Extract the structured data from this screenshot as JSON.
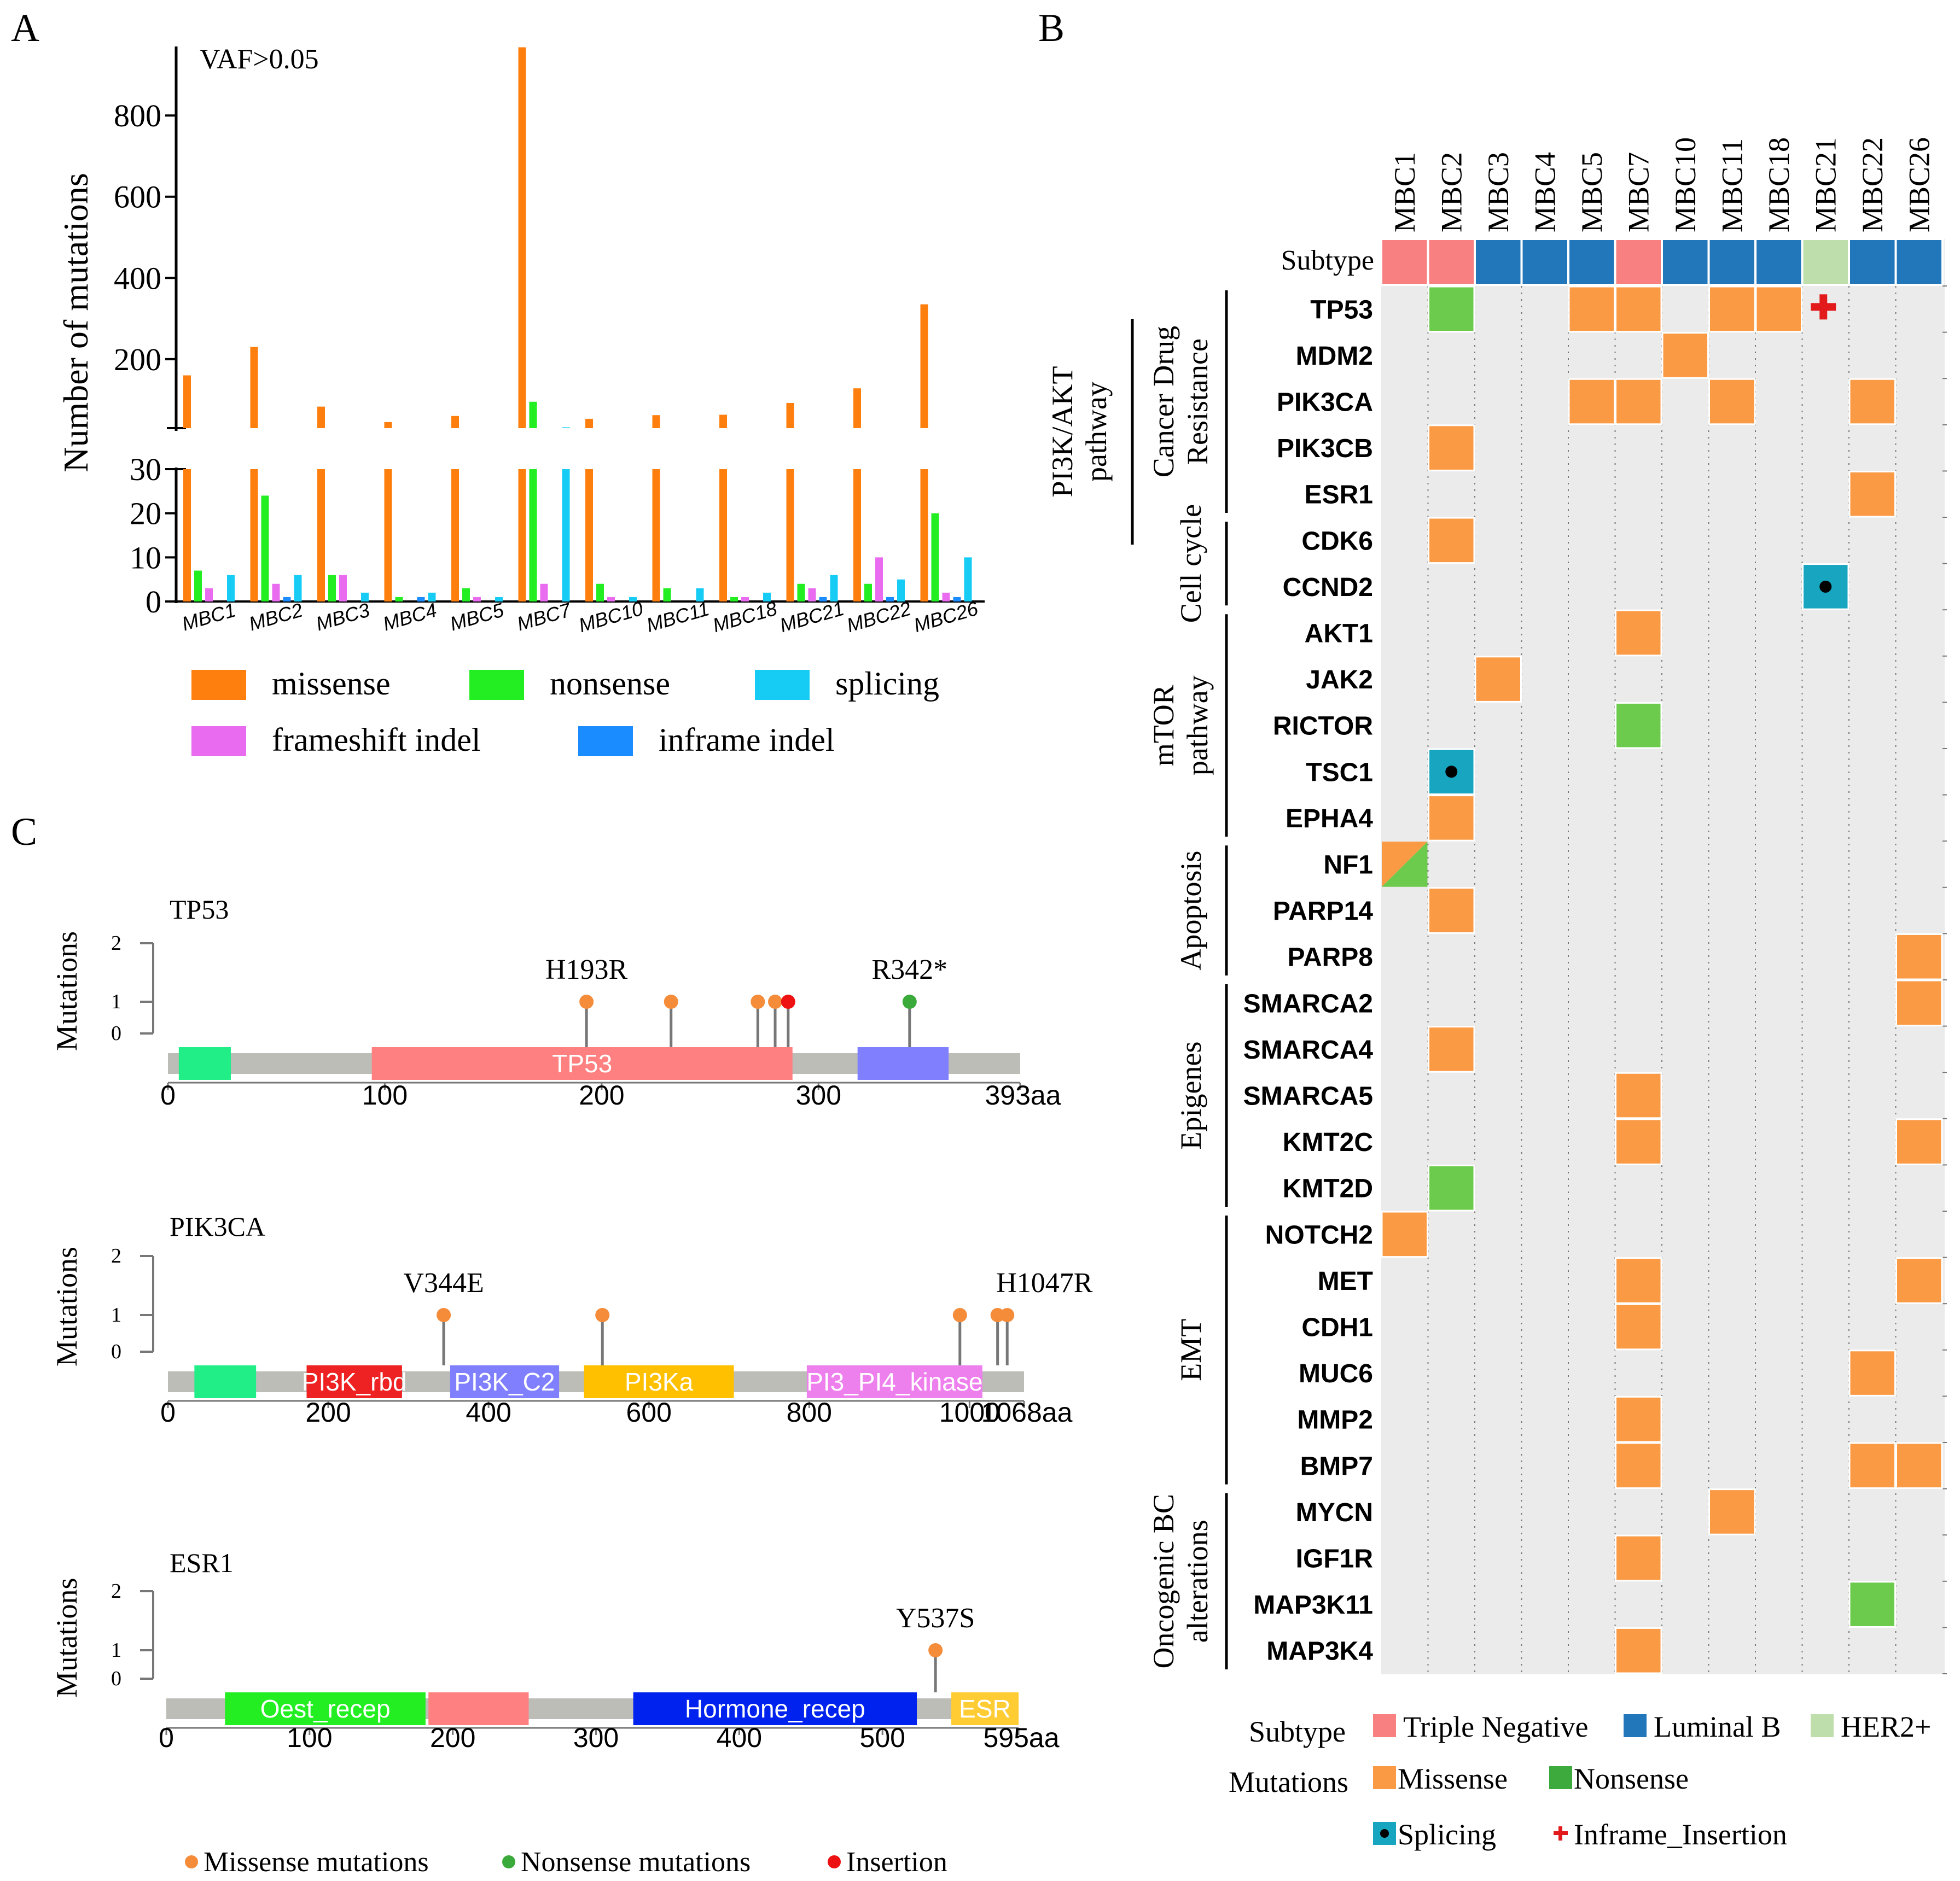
{
  "panel_labels": {
    "a": "A",
    "b": "B",
    "c": "C"
  },
  "chart_data": [
    {
      "id": "A",
      "type": "bar",
      "title": "VAF>0.05",
      "ylabel": "Number of mutations",
      "upper_ticks": [
        "200",
        "400",
        "600",
        "800"
      ],
      "lower_ticks": [
        "0",
        "10",
        "20",
        "30"
      ],
      "ylim_upper": [
        30,
        970
      ],
      "ylim_lower": [
        0,
        30
      ],
      "categories": [
        "MBC1",
        "MBC2",
        "MBC3",
        "MBC4",
        "MBC5",
        "MBC7",
        "MBC10",
        "MBC11",
        "MBC18",
        "MBC21",
        "MBC22",
        "MBC26"
      ],
      "series": [
        {
          "name": "missense",
          "color": "#FF7F0E",
          "values": [
            160,
            230,
            83,
            45,
            60,
            968,
            53,
            62,
            63,
            92,
            128,
            335
          ]
        },
        {
          "name": "nonsense",
          "color": "#22EE22",
          "values": [
            7,
            24,
            6,
            1,
            3,
            95,
            4,
            3,
            1,
            4,
            4,
            20
          ]
        },
        {
          "name": "frameshift indel",
          "color": "#E96CF0",
          "values": [
            3,
            4,
            6,
            0,
            1,
            4,
            1,
            0,
            1,
            3,
            10,
            2
          ]
        },
        {
          "name": "inframe indel",
          "color": "#1A8CFF",
          "values": [
            0,
            1,
            0,
            1,
            0,
            0,
            0,
            0,
            0,
            1,
            1,
            1
          ]
        },
        {
          "name": "splicing",
          "color": "#16CCF5",
          "values": [
            6,
            6,
            2,
            2,
            1,
            32,
            1,
            3,
            2,
            6,
            5,
            10
          ]
        }
      ],
      "legend": [
        {
          "label": "missense",
          "color": "#FF7F0E"
        },
        {
          "label": "nonsense",
          "color": "#22EE22"
        },
        {
          "label": "splicing",
          "color": "#16CCF5"
        },
        {
          "label": "frameshift indel",
          "color": "#E96CF0"
        },
        {
          "label": "inframe indel",
          "color": "#1A8CFF"
        }
      ]
    },
    {
      "id": "B",
      "type": "heatmap",
      "samples": [
        "MBC1",
        "MBC2",
        "MBC3",
        "MBC4",
        "MBC5",
        "MBC7",
        "MBC10",
        "MBC11",
        "MBC18",
        "MBC21",
        "MBC22",
        "MBC26"
      ],
      "subtype_label": "Subtype",
      "subtypes": [
        "Triple Negative",
        "Triple Negative",
        "Luminal B",
        "Luminal B",
        "Luminal B",
        "Triple Negative",
        "Luminal B",
        "Luminal B",
        "Luminal B",
        "HER2+",
        "Luminal B",
        "Luminal B"
      ],
      "subtype_colors": {
        "Triple Negative": "#F88080",
        "Luminal B": "#2277BB",
        "HER2+": "#BEDEAC"
      },
      "mutation_colors": {
        "Missense": "#FB9A45",
        "Nonsense": "#6CCB4C",
        "Splicing": "#17A5BF",
        "Inframe_Insertion": "#E31A1C"
      },
      "genes": [
        "TP53",
        "MDM2",
        "PIK3CA",
        "PIK3CB",
        "ESR1",
        "CDK6",
        "CCND2",
        "AKT1",
        "JAK2",
        "RICTOR",
        "TSC1",
        "EPHA4",
        "NF1",
        "PARP14",
        "PARP8",
        "SMARCA2",
        "SMARCA4",
        "SMARCA5",
        "KMT2C",
        "KMT2D",
        "NOTCH2",
        "MET",
        "CDH1",
        "MUC6",
        "MMP2",
        "BMP7",
        "MYCN",
        "IGF1R",
        "MAP3K11",
        "MAP3K4"
      ],
      "mutations": [
        {
          "gene": "TP53",
          "sample": "MBC2",
          "type": "Nonsense"
        },
        {
          "gene": "TP53",
          "sample": "MBC5",
          "type": "Missense"
        },
        {
          "gene": "TP53",
          "sample": "MBC7",
          "type": "Missense"
        },
        {
          "gene": "TP53",
          "sample": "MBC11",
          "type": "Missense"
        },
        {
          "gene": "TP53",
          "sample": "MBC18",
          "type": "Missense"
        },
        {
          "gene": "TP53",
          "sample": "MBC21",
          "type": "Inframe_Insertion"
        },
        {
          "gene": "MDM2",
          "sample": "MBC10",
          "type": "Missense"
        },
        {
          "gene": "PIK3CA",
          "sample": "MBC5",
          "type": "Missense"
        },
        {
          "gene": "PIK3CA",
          "sample": "MBC7",
          "type": "Missense"
        },
        {
          "gene": "PIK3CA",
          "sample": "MBC11",
          "type": "Missense"
        },
        {
          "gene": "PIK3CA",
          "sample": "MBC22",
          "type": "Missense"
        },
        {
          "gene": "PIK3CB",
          "sample": "MBC2",
          "type": "Missense"
        },
        {
          "gene": "ESR1",
          "sample": "MBC22",
          "type": "Missense"
        },
        {
          "gene": "CDK6",
          "sample": "MBC2",
          "type": "Missense"
        },
        {
          "gene": "CCND2",
          "sample": "MBC21",
          "type": "Splicing"
        },
        {
          "gene": "AKT1",
          "sample": "MBC7",
          "type": "Missense"
        },
        {
          "gene": "JAK2",
          "sample": "MBC3",
          "type": "Missense"
        },
        {
          "gene": "RICTOR",
          "sample": "MBC7",
          "type": "Nonsense"
        },
        {
          "gene": "TSC1",
          "sample": "MBC2",
          "type": "Splicing"
        },
        {
          "gene": "EPHA4",
          "sample": "MBC2",
          "type": "Missense"
        },
        {
          "gene": "NF1",
          "sample": "MBC1",
          "type": "Missense+Nonsense"
        },
        {
          "gene": "PARP14",
          "sample": "MBC2",
          "type": "Missense"
        },
        {
          "gene": "PARP8",
          "sample": "MBC26",
          "type": "Missense"
        },
        {
          "gene": "SMARCA2",
          "sample": "MBC26",
          "type": "Missense"
        },
        {
          "gene": "SMARCA4",
          "sample": "MBC2",
          "type": "Missense"
        },
        {
          "gene": "SMARCA5",
          "sample": "MBC7",
          "type": "Missense"
        },
        {
          "gene": "KMT2C",
          "sample": "MBC7",
          "type": "Missense"
        },
        {
          "gene": "KMT2C",
          "sample": "MBC26",
          "type": "Missense"
        },
        {
          "gene": "KMT2D",
          "sample": "MBC2",
          "type": "Nonsense"
        },
        {
          "gene": "NOTCH2",
          "sample": "MBC1",
          "type": "Missense"
        },
        {
          "gene": "MET",
          "sample": "MBC7",
          "type": "Missense"
        },
        {
          "gene": "MET",
          "sample": "MBC26",
          "type": "Missense"
        },
        {
          "gene": "CDH1",
          "sample": "MBC7",
          "type": "Missense"
        },
        {
          "gene": "MUC6",
          "sample": "MBC22",
          "type": "Missense"
        },
        {
          "gene": "MMP2",
          "sample": "MBC7",
          "type": "Missense"
        },
        {
          "gene": "BMP7",
          "sample": "MBC7",
          "type": "Missense"
        },
        {
          "gene": "BMP7",
          "sample": "MBC22",
          "type": "Missense"
        },
        {
          "gene": "BMP7",
          "sample": "MBC26",
          "type": "Missense"
        },
        {
          "gene": "MYCN",
          "sample": "MBC11",
          "type": "Missense"
        },
        {
          "gene": "IGF1R",
          "sample": "MBC7",
          "type": "Missense"
        },
        {
          "gene": "MAP3K11",
          "sample": "MBC22",
          "type": "Nonsense"
        },
        {
          "gene": "MAP3K4",
          "sample": "MBC7",
          "type": "Missense"
        }
      ],
      "pathways_inner": [
        {
          "lines": [
            "Cancer Drug",
            "Resistance"
          ],
          "first": 0,
          "last": 4
        },
        {
          "lines": [
            "Cell cycle"
          ],
          "first": 5,
          "last": 6
        },
        {
          "lines": [
            "mTOR",
            "pathway"
          ],
          "first": 7,
          "last": 11
        },
        {
          "lines": [
            "Apoptosis"
          ],
          "first": 12,
          "last": 14
        },
        {
          "lines": [
            "Epigenes"
          ],
          "first": 15,
          "last": 19
        },
        {
          "lines": [
            "EMT"
          ],
          "first": 20,
          "last": 25
        },
        {
          "lines": [
            "Oncogenic BC",
            "alterations"
          ],
          "first": 26,
          "last": 29
        }
      ],
      "pathways_outer": [
        {
          "lines": [
            "PI3K/AKT",
            "pathway"
          ],
          "first": 0,
          "last": 4
        }
      ],
      "legend": {
        "subtype_title": "Subtype",
        "mutation_title": "Mutations",
        "subtype_items": [
          {
            "label": "Triple Negative",
            "color": "#F88080"
          },
          {
            "label": "Luminal B",
            "color": "#2277BB"
          },
          {
            "label": "HER2+",
            "color": "#BEDEAC"
          }
        ],
        "mutation_items": [
          {
            "label": "Missense",
            "color": "#FB9A45"
          },
          {
            "label": "Nonsense",
            "color": "#3DAA3D"
          },
          {
            "label": "Splicing",
            "color": "#17A5BF"
          },
          {
            "label": "Inframe_Insertion",
            "color": "#E31A1C"
          }
        ]
      }
    },
    {
      "id": "C",
      "type": "lollipop",
      "ylabel": "Mutations",
      "yticks": [
        "0",
        "1",
        "2"
      ],
      "proteins": [
        {
          "name": "TP53",
          "length": 393,
          "length_label": "393aa",
          "xticks": [
            0,
            100,
            200,
            300
          ],
          "domains": [
            {
              "label": "",
              "start": 5,
              "end": 29,
              "color": "#22EE88"
            },
            {
              "label": "TP53",
              "start": 94,
              "end": 288,
              "color": "#FF8080"
            },
            {
              "label": "",
              "start": 318,
              "end": 360,
              "color": "#8080FF"
            }
          ],
          "mutations": [
            {
              "pos": 193,
              "count": 1,
              "type": "missense",
              "label": "H193R"
            },
            {
              "pos": 232,
              "count": 1,
              "type": "missense",
              "label": ""
            },
            {
              "pos": 272,
              "count": 1,
              "type": "missense",
              "label": ""
            },
            {
              "pos": 280,
              "count": 1,
              "type": "missense",
              "label": ""
            },
            {
              "pos": 286,
              "count": 1,
              "type": "insertion",
              "label": ""
            },
            {
              "pos": 342,
              "count": 1,
              "type": "nonsense",
              "label": "R342*"
            }
          ]
        },
        {
          "name": "PIK3CA",
          "length": 1068,
          "length_label": "1068aa",
          "xticks": [
            0,
            200,
            400,
            600,
            800,
            1000
          ],
          "domains": [
            {
              "label": "",
              "start": 33,
              "end": 110,
              "color": "#22EE88"
            },
            {
              "label": "PI3K_rbd",
              "start": 173,
              "end": 292,
              "color": "#EE2222"
            },
            {
              "label": "PI3K_C2",
              "start": 352,
              "end": 488,
              "color": "#8080FF"
            },
            {
              "label": "PI3Ka",
              "start": 519,
              "end": 706,
              "color": "#FFC000"
            },
            {
              "label": "PI3_PI4_kinase",
              "start": 797,
              "end": 1016,
              "color": "#EE80EE"
            }
          ],
          "mutations": [
            {
              "pos": 344,
              "count": 1,
              "type": "missense",
              "label": "V344E"
            },
            {
              "pos": 542,
              "count": 1,
              "type": "missense",
              "label": ""
            },
            {
              "pos": 988,
              "count": 1,
              "type": "missense",
              "label": ""
            },
            {
              "pos": 1035,
              "count": 1,
              "type": "missense",
              "label": ""
            },
            {
              "pos": 1047,
              "count": 1,
              "type": "missense",
              "label": "H1047R"
            }
          ]
        },
        {
          "name": "ESR1",
          "length": 595,
          "length_label": "595aa",
          "xticks": [
            0,
            100,
            200,
            300,
            400,
            500
          ],
          "domains": [
            {
              "label": "Oest_recep",
              "start": 41,
              "end": 181,
              "color": "#22EE22"
            },
            {
              "label": "",
              "start": 183,
              "end": 253,
              "color": "#FF8080"
            },
            {
              "label": "Hormone_recep",
              "start": 326,
              "end": 524,
              "color": "#0022EE"
            },
            {
              "label": "ESR",
              "start": 548,
              "end": 595,
              "color": "#FFCC33"
            }
          ],
          "mutations": [
            {
              "pos": 537,
              "count": 1,
              "type": "missense",
              "label": "Y537S"
            }
          ]
        }
      ],
      "type_colors": {
        "missense": "#F58C3A",
        "nonsense": "#3AAA3A",
        "insertion": "#EE1111"
      },
      "legend": [
        {
          "label": "Missense mutations",
          "color": "#F58C3A"
        },
        {
          "label": "Nonsense mutations",
          "color": "#3AAA3A"
        },
        {
          "label": "Insertion",
          "color": "#EE1111"
        }
      ]
    }
  ]
}
